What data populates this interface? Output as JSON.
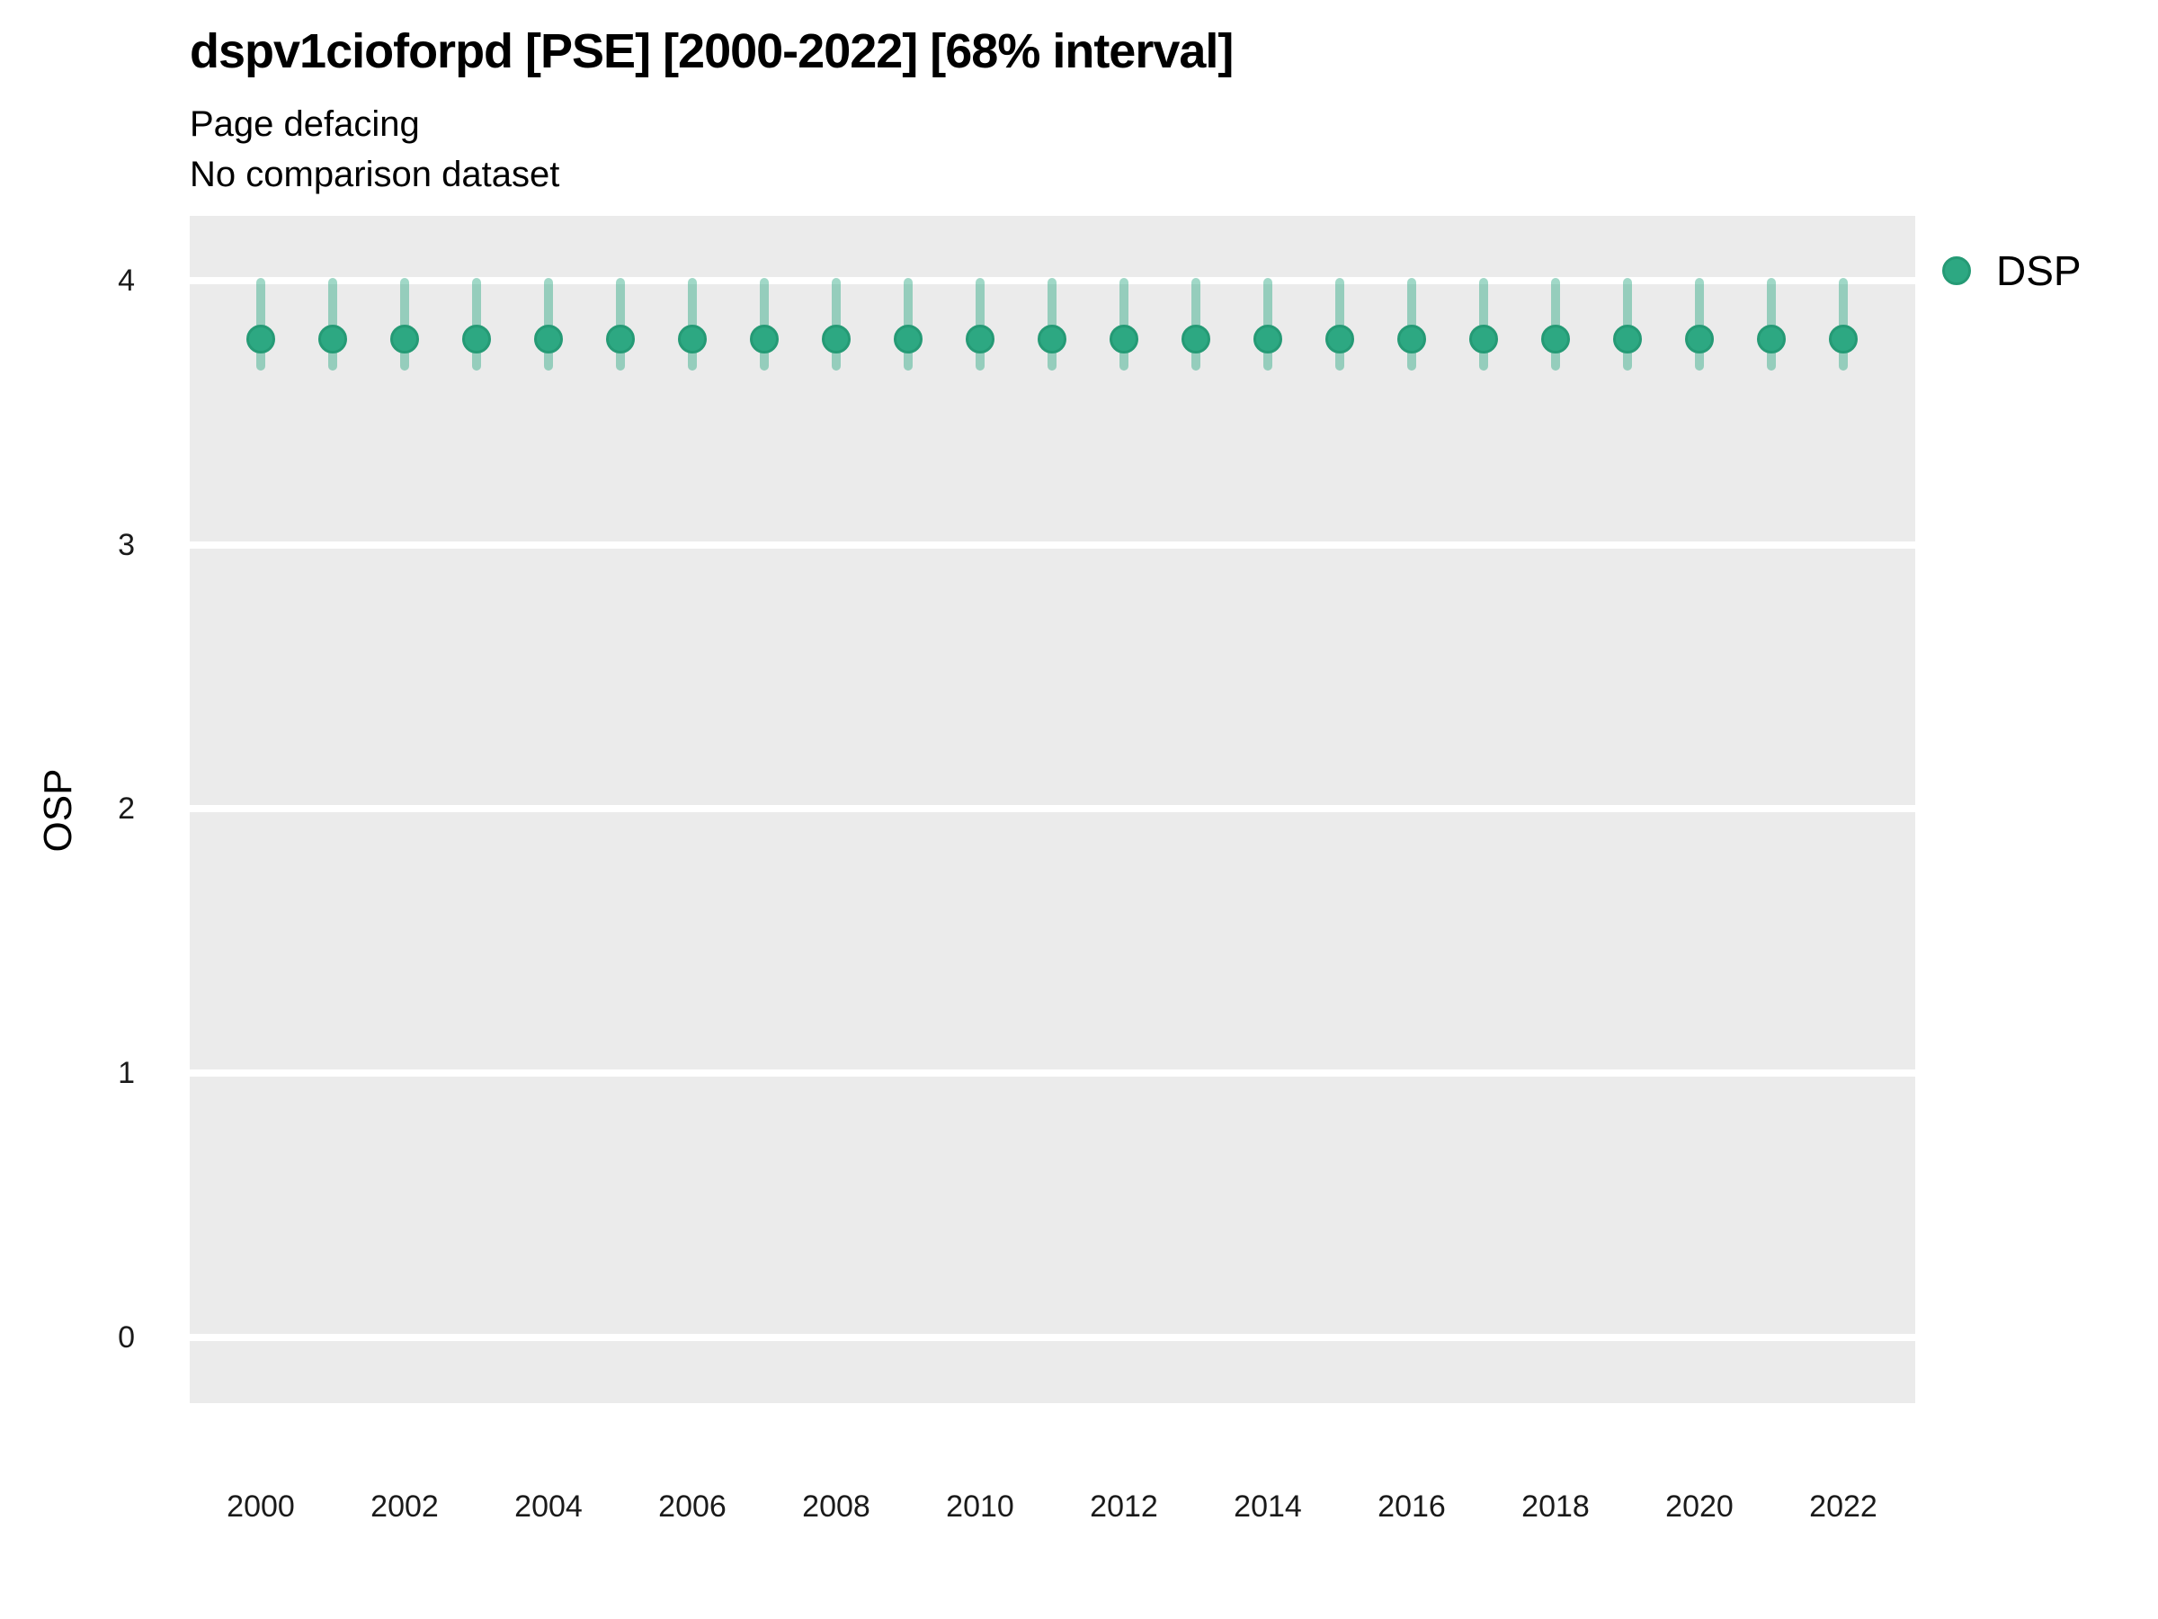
{
  "chart_data": {
    "type": "scatter",
    "title": "dspv1cioforpd [PSE] [2000-2022] [68% interval]",
    "subtitle": "Page defacing",
    "subtitle2": "No comparison dataset",
    "xlabel": "",
    "ylabel": "OSP",
    "interval": "68%",
    "grid": "major horizontal white gridlines on gray panel",
    "panel_bg": "#EBEBEB",
    "gridline_color": "#FFFFFF",
    "xlim": [
      1999.0125,
      2023.0
    ],
    "ylim": [
      -0.25,
      4.245
    ],
    "xticks": [
      2000,
      2002,
      2004,
      2006,
      2008,
      2010,
      2012,
      2014,
      2016,
      2018,
      2020,
      2022
    ],
    "yticks": [
      0,
      1,
      2,
      3,
      4
    ],
    "legend": {
      "position": "right-top",
      "entries": [
        {
          "label": "DSP",
          "color": "#2DA882"
        }
      ]
    },
    "series": [
      {
        "name": "DSP",
        "color": "#2DA882",
        "edge_color": "#259A75",
        "errorbar_color": "rgba(45,168,130,0.45)",
        "x": [
          2000,
          2001,
          2002,
          2003,
          2004,
          2005,
          2006,
          2007,
          2008,
          2009,
          2010,
          2011,
          2012,
          2013,
          2014,
          2015,
          2016,
          2017,
          2018,
          2019,
          2020,
          2021,
          2022
        ],
        "y": [
          3.78,
          3.78,
          3.78,
          3.78,
          3.78,
          3.78,
          3.78,
          3.78,
          3.78,
          3.78,
          3.78,
          3.78,
          3.78,
          3.78,
          3.78,
          3.78,
          3.78,
          3.78,
          3.78,
          3.78,
          3.78,
          3.78,
          3.78
        ],
        "y_lo": [
          3.66,
          3.66,
          3.66,
          3.66,
          3.66,
          3.66,
          3.66,
          3.66,
          3.66,
          3.66,
          3.66,
          3.66,
          3.66,
          3.66,
          3.66,
          3.66,
          3.66,
          3.66,
          3.66,
          3.66,
          3.66,
          3.66,
          3.66
        ],
        "y_hi": [
          4.01,
          4.01,
          4.01,
          4.01,
          4.01,
          4.01,
          4.01,
          4.01,
          4.01,
          4.01,
          4.01,
          4.01,
          4.01,
          4.01,
          4.01,
          4.01,
          4.01,
          4.01,
          4.01,
          4.01,
          4.01,
          4.01,
          4.01
        ]
      }
    ]
  }
}
